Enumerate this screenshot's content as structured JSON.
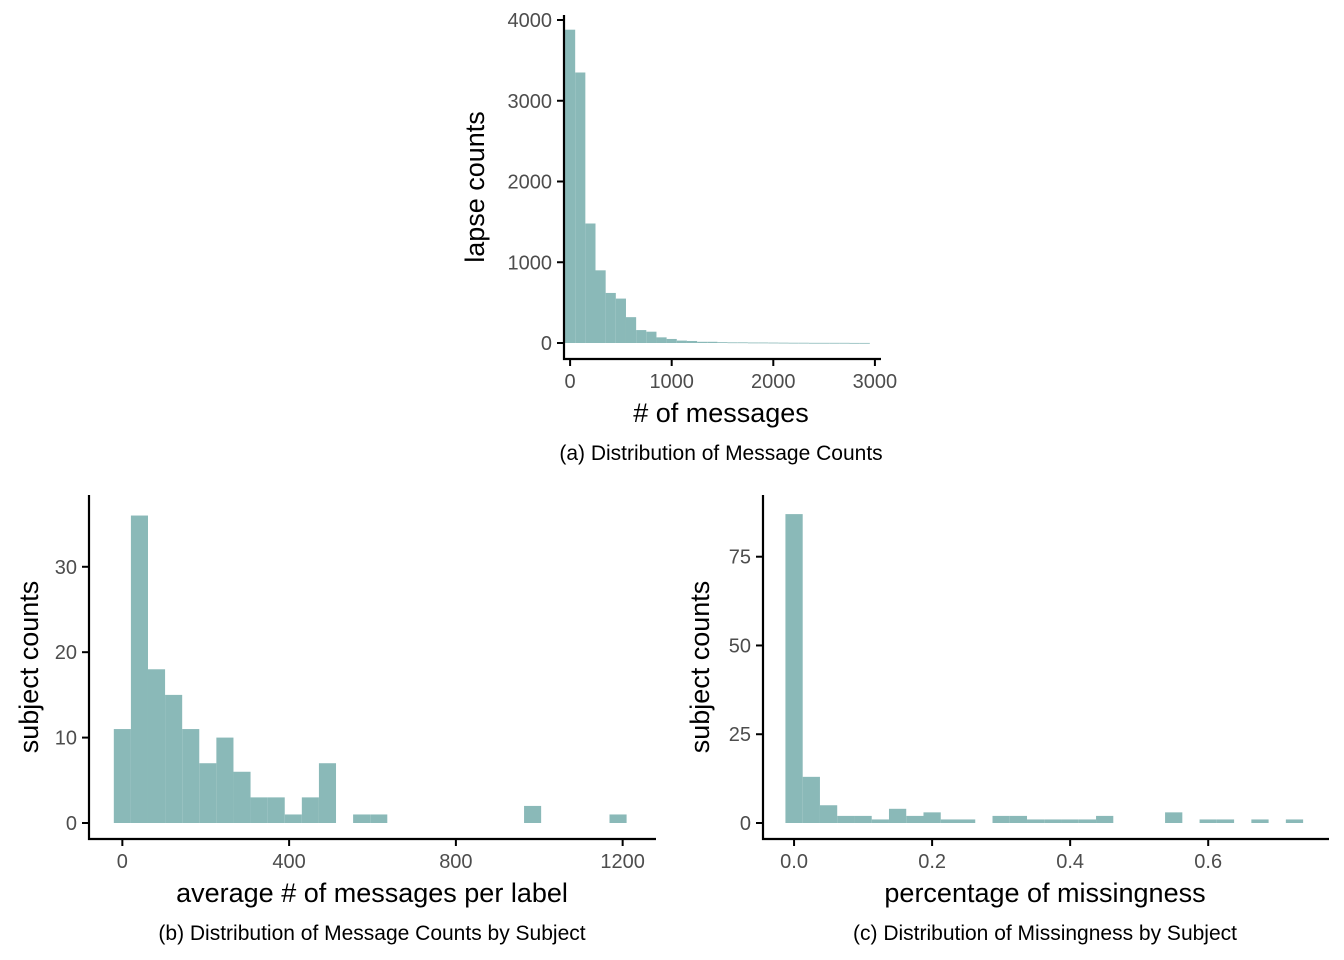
{
  "style": {
    "bar_color": "#8ab9b8"
  },
  "chart_data": [
    {
      "type": "bar",
      "histogram": true,
      "caption": "(a) Distribution of Message Counts",
      "xlabel": "# of messages",
      "ylabel": "lapse counts",
      "xlim": [
        -60,
        3060
      ],
      "ylim": [
        0,
        4000
      ],
      "x_ticks": [
        0,
        1000,
        2000,
        3000
      ],
      "x_tick_labels": [
        "0",
        "1000",
        "2000",
        "3000"
      ],
      "y_ticks": [
        0,
        1000,
        2000,
        3000,
        4000
      ],
      "y_tick_labels": [
        "0",
        "1000",
        "2000",
        "3000",
        "4000"
      ],
      "bin_width": 100,
      "x": [
        0,
        100,
        200,
        300,
        400,
        500,
        600,
        700,
        800,
        900,
        1000,
        1100,
        1200,
        1300,
        1400,
        1500,
        1600,
        1700,
        1800,
        1900,
        2000,
        2100,
        2200,
        2300,
        2400,
        2500,
        2600,
        2700,
        2800,
        2900
      ],
      "values": [
        3880,
        3350,
        1480,
        900,
        620,
        550,
        320,
        160,
        140,
        70,
        50,
        30,
        25,
        15,
        15,
        10,
        8,
        8,
        6,
        6,
        5,
        4,
        3,
        3,
        2,
        2,
        2,
        2,
        1,
        1
      ]
    },
    {
      "type": "bar",
      "histogram": true,
      "caption": "(b) Distribution of Message Counts by Subject",
      "xlabel": "average # of messages per label",
      "ylabel": "subject counts",
      "xlim": [
        -80,
        1280
      ],
      "ylim": [
        0,
        37
      ],
      "x_ticks": [
        0,
        400,
        800,
        1200
      ],
      "x_tick_labels": [
        "0",
        "400",
        "800",
        "1200"
      ],
      "y_ticks": [
        0,
        10,
        20,
        30
      ],
      "y_tick_labels": [
        "0",
        "10",
        "20",
        "30"
      ],
      "bin_width": 41,
      "x": [
        0,
        41,
        82,
        123,
        164,
        205,
        246,
        287,
        328,
        369,
        410,
        451,
        492,
        533,
        574,
        615,
        656,
        697,
        738,
        779,
        820,
        861,
        902,
        943,
        984,
        1025,
        1066,
        1107,
        1148,
        1189
      ],
      "values": [
        11,
        36,
        18,
        15,
        11,
        7,
        10,
        6,
        3,
        3,
        1,
        3,
        7,
        0,
        1,
        1,
        0,
        0,
        0,
        0,
        0,
        0,
        0,
        0,
        2,
        0,
        0,
        0,
        0,
        1
      ]
    },
    {
      "type": "bar",
      "histogram": true,
      "caption": "(c) Distribution of Missingness by Subject",
      "xlabel": "percentage of missingness",
      "ylabel": "subject counts",
      "xlim": [
        -0.045,
        0.775
      ],
      "ylim": [
        0,
        89
      ],
      "x_ticks": [
        0.0,
        0.2,
        0.4,
        0.6
      ],
      "x_tick_labels": [
        "0.0",
        "0.2",
        "0.4",
        "0.6"
      ],
      "y_ticks": [
        0,
        25,
        50,
        75
      ],
      "y_tick_labels": [
        "0",
        "25",
        "50",
        "75"
      ],
      "bin_width": 0.025,
      "x": [
        0,
        0.025,
        0.05,
        0.075,
        0.1,
        0.125,
        0.15,
        0.175,
        0.2,
        0.225,
        0.25,
        0.275,
        0.3,
        0.325,
        0.35,
        0.375,
        0.4,
        0.425,
        0.45,
        0.475,
        0.5,
        0.525,
        0.55,
        0.575,
        0.6,
        0.625,
        0.65,
        0.675,
        0.7,
        0.725
      ],
      "values": [
        87,
        13,
        5,
        2,
        2,
        1,
        4,
        2,
        3,
        1,
        1,
        0,
        2,
        2,
        1,
        1,
        1,
        1,
        2,
        0,
        0,
        0,
        3,
        0,
        1,
        1,
        0,
        1,
        0,
        1
      ]
    }
  ]
}
